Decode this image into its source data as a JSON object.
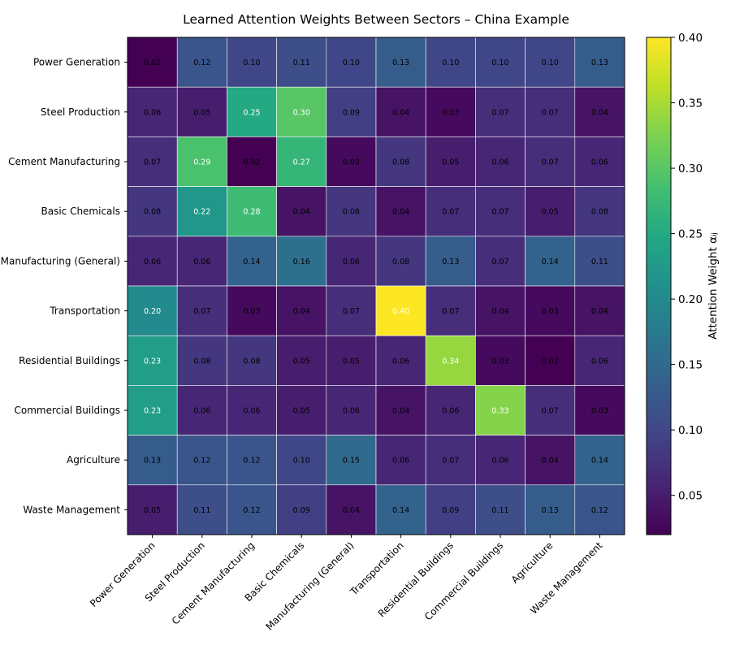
{
  "chart_data": {
    "type": "heatmap",
    "title": "Learned Attention Weights Between Sectors – China Example",
    "rows": [
      "Power Generation",
      "Steel Production",
      "Cement Manufacturing",
      "Basic Chemicals",
      "Manufacturing (General)",
      "Transportation",
      "Residential Buildings",
      "Commercial Buildings",
      "Agriculture",
      "Waste Management"
    ],
    "columns": [
      "Power Generation",
      "Steel Production",
      "Cement Manufacturing",
      "Basic Chemicals",
      "Manufacturing (General)",
      "Transportation",
      "Residential Buildings",
      "Commercial Buildings",
      "Agriculture",
      "Waste Management"
    ],
    "values": [
      [
        0.02,
        0.12,
        0.1,
        0.11,
        0.1,
        0.13,
        0.1,
        0.1,
        0.1,
        0.13
      ],
      [
        0.06,
        0.05,
        0.25,
        0.3,
        0.09,
        0.04,
        0.03,
        0.07,
        0.07,
        0.04
      ],
      [
        0.07,
        0.29,
        0.02,
        0.27,
        0.03,
        0.08,
        0.05,
        0.06,
        0.07,
        0.06
      ],
      [
        0.08,
        0.22,
        0.28,
        0.04,
        0.08,
        0.04,
        0.07,
        0.07,
        0.05,
        0.08
      ],
      [
        0.06,
        0.06,
        0.14,
        0.16,
        0.06,
        0.08,
        0.13,
        0.07,
        0.14,
        0.11
      ],
      [
        0.2,
        0.07,
        0.03,
        0.04,
        0.07,
        0.4,
        0.07,
        0.04,
        0.03,
        0.04
      ],
      [
        0.23,
        0.08,
        0.08,
        0.05,
        0.05,
        0.06,
        0.34,
        0.03,
        0.02,
        0.06
      ],
      [
        0.23,
        0.06,
        0.06,
        0.05,
        0.06,
        0.04,
        0.06,
        0.33,
        0.07,
        0.03
      ],
      [
        0.13,
        0.12,
        0.12,
        0.1,
        0.15,
        0.06,
        0.07,
        0.06,
        0.04,
        0.14
      ],
      [
        0.05,
        0.11,
        0.12,
        0.09,
        0.04,
        0.14,
        0.09,
        0.11,
        0.13,
        0.12
      ]
    ],
    "colormap": "viridis",
    "colorbar": {
      "label": "Attention Weight αᵢⱼ",
      "range": [
        0.02,
        0.4
      ],
      "ticks": [
        "0.05",
        "0.10",
        "0.15",
        "0.20",
        "0.25",
        "0.30",
        "0.35",
        "0.40"
      ]
    }
  }
}
